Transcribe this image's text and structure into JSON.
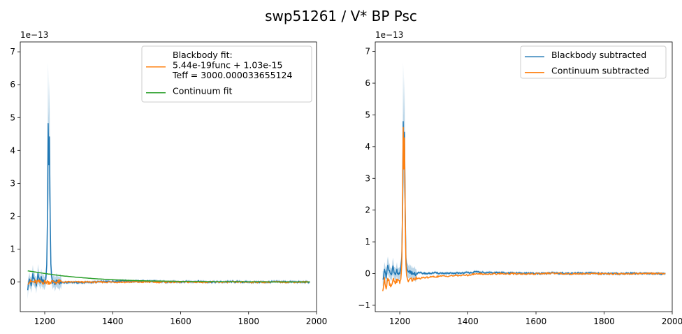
{
  "figure": {
    "title": "swp51261 / V* BP Psc"
  },
  "colors": {
    "blue": "#1f77b4",
    "orange": "#ff7f0e",
    "green": "#2ca02c"
  },
  "chart_data": [
    {
      "type": "line",
      "title": "",
      "xlabel": "",
      "ylabel": "",
      "y_offset_text": "1e−13",
      "y_scale": 1e-13,
      "xlim": [
        1128,
        2000
      ],
      "ylim": [
        -0.9,
        7.3
      ],
      "xticks": [
        1200,
        1400,
        1600,
        1800,
        2000
      ],
      "yticks": [
        0,
        1,
        2,
        3,
        4,
        5,
        6,
        7
      ],
      "grid": false,
      "legend_position": "upper right",
      "legend": [
        {
          "label_lines": [
            "Blackbody fit:",
            "5.44e-19func + 1.03e-15",
            "Teff = 3000.000033655124"
          ],
          "color": "orange"
        },
        {
          "label_lines": [
            "Continuum fit"
          ],
          "color": "green"
        }
      ],
      "series": [
        {
          "name": "",
          "color": "blue",
          "x": [
            1150,
            1155,
            1160,
            1165,
            1170,
            1175,
            1180,
            1185,
            1190,
            1195,
            1200,
            1203,
            1206,
            1208,
            1210,
            1212,
            1214,
            1216,
            1218,
            1220,
            1222,
            1225,
            1230,
            1240,
            1260,
            1280,
            1300,
            1350,
            1400,
            1430,
            1450,
            1500,
            1550,
            1600,
            1650,
            1700,
            1750,
            1800,
            1850,
            1900,
            1950,
            1980
          ],
          "y": [
            -0.2,
            0.1,
            -0.15,
            0.25,
            0.05,
            -0.1,
            0.2,
            0.0,
            0.1,
            0.0,
            0.0,
            0.1,
            0.5,
            2.0,
            4.8,
            3.5,
            4.45,
            2.0,
            0.5,
            0.15,
            0.05,
            0.0,
            -0.02,
            0.0,
            -0.02,
            0.0,
            -0.02,
            0.0,
            0.02,
            0.05,
            0.02,
            0.03,
            0.01,
            0.0,
            0.02,
            0.0,
            0.01,
            0.0,
            0.0,
            0.01,
            0.0,
            0.0
          ],
          "err_band": true
        },
        {
          "name": "Blackbody fit",
          "color": "orange",
          "x": [
            1150,
            1300,
            1500,
            1700,
            1900,
            1980
          ],
          "y": [
            0.0,
            0.0,
            0.0,
            0.0,
            0.0,
            0.0
          ]
        },
        {
          "name": "Continuum fit",
          "color": "green",
          "x": [
            1150,
            1200,
            1250,
            1300,
            1350,
            1400,
            1450,
            1500,
            1600,
            1700,
            1800,
            1900,
            1980
          ],
          "y": [
            0.34,
            0.26,
            0.19,
            0.14,
            0.1,
            0.07,
            0.05,
            0.035,
            0.02,
            0.01,
            0.005,
            0.003,
            0.002
          ]
        }
      ]
    },
    {
      "type": "line",
      "title": "",
      "xlabel": "",
      "ylabel": "",
      "y_offset_text": "1e−13",
      "y_scale": 1e-13,
      "xlim": [
        1128,
        2000
      ],
      "ylim": [
        -1.2,
        7.3
      ],
      "xticks": [
        1200,
        1400,
        1600,
        1800,
        2000
      ],
      "yticks": [
        -1,
        0,
        1,
        2,
        3,
        4,
        5,
        6,
        7
      ],
      "grid": false,
      "legend_position": "upper right",
      "legend": [
        {
          "label_lines": [
            "Blackbody subtracted"
          ],
          "color": "blue"
        },
        {
          "label_lines": [
            "Continuum subtracted"
          ],
          "color": "orange"
        }
      ],
      "series": [
        {
          "name": "Blackbody subtracted",
          "color": "blue",
          "x": [
            1150,
            1155,
            1160,
            1165,
            1170,
            1175,
            1180,
            1185,
            1190,
            1195,
            1200,
            1203,
            1206,
            1208,
            1210,
            1212,
            1214,
            1216,
            1218,
            1220,
            1222,
            1225,
            1230,
            1240,
            1260,
            1280,
            1300,
            1350,
            1400,
            1430,
            1450,
            1500,
            1550,
            1600,
            1650,
            1700,
            1750,
            1800,
            1850,
            1900,
            1950,
            1980
          ],
          "y": [
            -0.2,
            0.1,
            -0.15,
            0.25,
            0.05,
            -0.1,
            0.2,
            0.0,
            0.1,
            0.0,
            0.0,
            0.1,
            0.5,
            2.0,
            4.8,
            3.5,
            4.45,
            2.0,
            0.5,
            0.15,
            0.05,
            0.0,
            0.05,
            0.0,
            0.02,
            0.0,
            0.02,
            0.0,
            0.03,
            0.05,
            0.02,
            0.03,
            0.01,
            0.0,
            0.02,
            0.0,
            0.01,
            0.0,
            0.0,
            0.01,
            0.0,
            0.0
          ],
          "err_band": true
        },
        {
          "name": "Continuum subtracted",
          "color": "orange",
          "x": [
            1150,
            1155,
            1160,
            1165,
            1170,
            1175,
            1180,
            1185,
            1190,
            1195,
            1200,
            1203,
            1206,
            1208,
            1210,
            1212,
            1214,
            1216,
            1218,
            1220,
            1222,
            1225,
            1230,
            1240,
            1260,
            1280,
            1300,
            1350,
            1400,
            1430,
            1450,
            1500,
            1550,
            1600,
            1650,
            1700,
            1750,
            1800,
            1850,
            1900,
            1950,
            1980
          ],
          "y": [
            -0.55,
            -0.2,
            -0.45,
            -0.1,
            -0.3,
            -0.4,
            -0.15,
            -0.3,
            -0.2,
            -0.25,
            -0.25,
            -0.15,
            0.25,
            1.8,
            4.6,
            3.3,
            4.3,
            1.8,
            0.3,
            -0.1,
            -0.2,
            -0.22,
            -0.2,
            -0.18,
            -0.15,
            -0.12,
            -0.1,
            -0.07,
            -0.05,
            0.0,
            -0.02,
            0.0,
            -0.01,
            -0.01,
            0.01,
            -0.01,
            0.0,
            -0.01,
            -0.01,
            0.0,
            0.0,
            0.0
          ]
        }
      ]
    }
  ]
}
